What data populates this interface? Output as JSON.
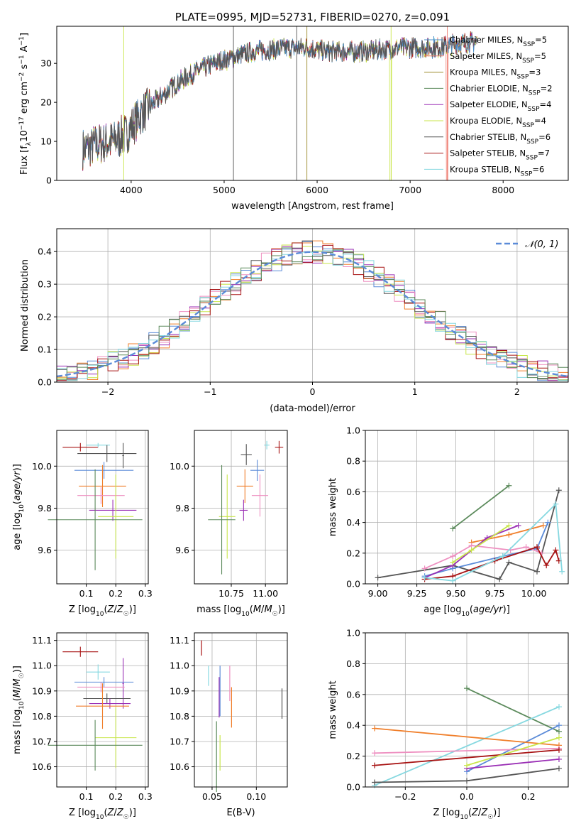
{
  "chart_data": [
    {
      "id": "spectrum",
      "type": "line",
      "title": "PLATE=0995, MJD=52731, FIBERID=0270, z=0.091",
      "xlabel": "wavelength [Angstrom, rest frame]",
      "ylabel": "Flux [f_λ10^-17 erg cm^-2 s^-1 A^-1]",
      "xlim": [
        3200,
        8700
      ],
      "ylim": [
        0,
        39.5
      ],
      "xticks": [
        "4000",
        "5000",
        "6000",
        "7000",
        "8000"
      ],
      "yticks": [
        "0",
        "10",
        "20",
        "30"
      ],
      "legend_position": "upper right",
      "continuum": {
        "x": [
          3480,
          3600,
          3800,
          3950,
          4100,
          4300,
          4500,
          4700,
          4900,
          5100,
          5300,
          5500,
          5700,
          5900,
          6100,
          6300,
          6500,
          6700,
          6900,
          7100,
          7300,
          7500,
          7700
        ],
        "y": [
          8,
          9,
          10,
          12,
          17,
          21,
          25,
          28,
          30,
          31.5,
          33,
          33.5,
          34,
          34,
          33,
          33,
          33,
          33.5,
          34,
          34,
          34,
          35,
          35.5
        ]
      },
      "series": [
        {
          "name": "Chabrier MILES, N_SSP=5",
          "label_main": "Chabrier MILES, N",
          "label_sub": "SSP",
          "label_tail": "=5",
          "color": "#4a8fc8",
          "marker": "+"
        },
        {
          "name": "Salpeter MILES, N_SSP=5",
          "label_main": "Salpeter MILES, N",
          "label_sub": "SSP",
          "label_tail": "=5",
          "color": "#ee7b6f"
        },
        {
          "name": "Kroupa MILES, N_SSP=3",
          "label_main": "Kroupa MILES, N",
          "label_sub": "SSP",
          "label_tail": "=3",
          "color": "#9b8a2a"
        },
        {
          "name": "Chabrier ELODIE, N_SSP=2",
          "label_main": "Chabrier ELODIE, N",
          "label_sub": "SSP",
          "label_tail": "=2",
          "color": "#5b8a5b"
        },
        {
          "name": "Salpeter ELODIE, N_SSP=4",
          "label_main": "Salpeter ELODIE, N",
          "label_sub": "SSP",
          "label_tail": "=4",
          "color": "#9a2fb5"
        },
        {
          "name": "Kroupa ELODIE, N_SSP=4",
          "label_main": "Kroupa ELODIE, N",
          "label_sub": "SSP",
          "label_tail": "=4",
          "color": "#c8e64a"
        },
        {
          "name": "Chabrier STELIB, N_SSP=6",
          "label_main": "Chabrier STELIB, N",
          "label_sub": "SSP",
          "label_tail": "=6",
          "color": "#555555"
        },
        {
          "name": "Salpeter STELIB, N_SSP=7",
          "label_main": "Salpeter STELIB, N",
          "label_sub": "SSP",
          "label_tail": "=7",
          "color": "#a81414"
        },
        {
          "name": "Kroupa STELIB, N_SSP=6",
          "label_main": "Kroupa STELIB, N",
          "label_sub": "SSP",
          "label_tail": "=6",
          "color": "#86d8e0"
        }
      ]
    },
    {
      "id": "residuals",
      "type": "line",
      "xlabel": "(data-model)/error",
      "ylabel": "Normed distribution",
      "xlim": [
        -2.5,
        2.5
      ],
      "ylim": [
        0,
        0.47
      ],
      "xticks": [
        "−2",
        "−1",
        "0",
        "1",
        "2"
      ],
      "yticks": [
        "0.0",
        "0.1",
        "0.2",
        "0.3",
        "0.4"
      ],
      "legend": "𝒩(0, 1)",
      "gauss_color": "#5b8bd8",
      "histogram": {
        "bin_edges_from": -2.5,
        "bin_width": 0.1,
        "nbins": 50,
        "colors": [
          "#5b8bd8",
          "#f07f2b",
          "#9a2fb5",
          "#ee8fc0",
          "#c8e64a",
          "#555555",
          "#a81414",
          "#86d8e0",
          "#5b8a5b"
        ]
      }
    },
    {
      "id": "age_Z",
      "type": "scatter",
      "xlabel": "Z [log10(Z/Z☉)]",
      "ylabel": "age [log10(age/yr)]",
      "xlim": [
        0.0,
        0.31
      ],
      "ylim": [
        9.44,
        10.17
      ],
      "xticks": [
        "0.1",
        "0.2",
        "0.3"
      ],
      "yticks": [
        "9.6",
        "9.8",
        "10.0"
      ],
      "points": [
        {
          "x": 0.08,
          "xerr": 0.06,
          "y": 10.09,
          "yerr": 0.02,
          "color": "#a81414"
        },
        {
          "x": 0.14,
          "xerr": 0.04,
          "y": 10.1,
          "yerr": 0.01,
          "color": "#86d8e0"
        },
        {
          "x": 0.17,
          "xerr": 0.1,
          "y": 10.06,
          "yerr": 0.04,
          "color": "#555555"
        },
        {
          "x": 0.225,
          "xerr": 0.003,
          "y": 10.05,
          "yerr": 0.06,
          "color": "#555555"
        },
        {
          "x": 0.16,
          "xerr": 0.1,
          "y": 9.98,
          "yerr": 0.04,
          "color": "#5b8bd8"
        },
        {
          "x": 0.155,
          "xerr": 0.08,
          "y": 9.905,
          "yerr": 0.1,
          "color": "#f07f2b"
        },
        {
          "x": 0.15,
          "xerr": 0.08,
          "y": 9.86,
          "yerr": 0.04,
          "color": "#ee8fc0"
        },
        {
          "x": 0.19,
          "xerr": 0.08,
          "y": 9.79,
          "yerr": 0.05,
          "color": "#9a2fb5"
        },
        {
          "x": 0.2,
          "xerr": 0.06,
          "y": 9.76,
          "yerr": 0.2,
          "color": "#c8e64a"
        },
        {
          "x": 0.13,
          "xerr": 0.16,
          "y": 9.745,
          "yerr": 0.24,
          "color": "#5b8a5b"
        }
      ]
    },
    {
      "id": "age_mass",
      "type": "scatter",
      "xlabel": "mass [log10(M/M☉)]",
      "ylabel": "",
      "xlim": [
        10.48,
        11.16
      ],
      "ylim": [
        9.44,
        10.17
      ],
      "xticks": [
        "10.75",
        "11.00"
      ],
      "yticks": [
        "9.6",
        "9.8",
        "10.0"
      ],
      "points": [
        {
          "x": 11.1,
          "xerr": 0.03,
          "y": 10.09,
          "yerr": 0.03,
          "color": "#a81414"
        },
        {
          "x": 11.01,
          "xerr": 0.02,
          "y": 10.1,
          "yerr": 0.02,
          "color": "#86d8e0"
        },
        {
          "x": 10.86,
          "xerr": 0.04,
          "y": 10.055,
          "yerr": 0.05,
          "color": "#555555"
        },
        {
          "x": 10.94,
          "xerr": 0.05,
          "y": 9.98,
          "yerr": 0.05,
          "color": "#5b8bd8"
        },
        {
          "x": 10.85,
          "xerr": 0.06,
          "y": 9.905,
          "yerr": 0.08,
          "color": "#f07f2b"
        },
        {
          "x": 10.96,
          "xerr": 0.06,
          "y": 9.86,
          "yerr": 0.1,
          "color": "#ee8fc0"
        },
        {
          "x": 10.84,
          "xerr": 0.03,
          "y": 9.79,
          "yerr": 0.05,
          "color": "#9a2fb5"
        },
        {
          "x": 10.72,
          "xerr": 0.06,
          "y": 9.76,
          "yerr": 0.2,
          "color": "#c8e64a"
        },
        {
          "x": 10.68,
          "xerr": 0.1,
          "y": 9.745,
          "yerr": 0.26,
          "color": "#5b8a5b"
        }
      ]
    },
    {
      "id": "weight_age",
      "type": "line",
      "xlabel": "age [log10(age/yr)]",
      "ylabel": "mass weight",
      "xlim": [
        8.92,
        10.22
      ],
      "ylim": [
        0,
        1.0
      ],
      "xticks": [
        "9.00",
        "9.25",
        "9.50",
        "9.75",
        "10.00"
      ],
      "yticks": [
        "0.0",
        "0.2",
        "0.4",
        "0.6",
        "0.8",
        "1.0"
      ],
      "series": [
        {
          "color": "#555555",
          "x": [
            9.0,
            9.48,
            9.78,
            9.84,
            10.02,
            10.16
          ],
          "y": [
            0.04,
            0.12,
            0.03,
            0.14,
            0.08,
            0.61
          ]
        },
        {
          "color": "#5b8bd8",
          "x": [
            9.3,
            9.48,
            9.8,
            10.02,
            10.09
          ],
          "y": [
            0.05,
            0.1,
            0.18,
            0.23,
            0.4
          ]
        },
        {
          "color": "#f07f2b",
          "x": [
            9.6,
            9.84,
            10.06
          ],
          "y": [
            0.27,
            0.32,
            0.38
          ]
        },
        {
          "color": "#ee8fc0",
          "x": [
            9.3,
            9.48,
            9.6,
            9.85,
            9.95,
            10.05
          ],
          "y": [
            0.1,
            0.18,
            0.25,
            0.22,
            0.24,
            0.2
          ]
        },
        {
          "color": "#9a2fb5",
          "x": [
            9.3,
            9.48,
            9.7,
            9.9
          ],
          "y": [
            0.04,
            0.12,
            0.3,
            0.38
          ]
        },
        {
          "color": "#c8e64a",
          "x": [
            9.48,
            9.6,
            9.84
          ],
          "y": [
            0.14,
            0.22,
            0.38
          ]
        },
        {
          "color": "#5b8a5b",
          "x": [
            9.48,
            9.84
          ],
          "y": [
            0.36,
            0.64
          ]
        },
        {
          "color": "#a81414",
          "x": [
            9.3,
            9.48,
            9.75,
            10.02,
            10.08,
            10.14,
            10.16
          ],
          "y": [
            0.03,
            0.05,
            0.15,
            0.24,
            0.12,
            0.22,
            0.15
          ]
        },
        {
          "color": "#86d8e0",
          "x": [
            9.3,
            9.48,
            9.8,
            10.14,
            10.18
          ],
          "y": [
            0.04,
            0.02,
            0.18,
            0.52,
            0.08
          ]
        }
      ]
    },
    {
      "id": "mass_Z",
      "type": "scatter",
      "xlabel": "Z [log10(Z/Z☉)]",
      "ylabel": "mass [log10(M/M☉)]",
      "xlim": [
        0.0,
        0.31
      ],
      "ylim": [
        10.52,
        11.13
      ],
      "xticks": [
        "0.1",
        "0.2",
        "0.3"
      ],
      "yticks": [
        "10.6",
        "10.7",
        "10.8",
        "10.9",
        "11.0",
        "11.1"
      ],
      "points": [
        {
          "x": 0.08,
          "xerr": 0.06,
          "y": 11.055,
          "yerr": 0.02,
          "color": "#a81414"
        },
        {
          "x": 0.14,
          "xerr": 0.04,
          "y": 10.975,
          "yerr": 0.03,
          "color": "#86d8e0"
        },
        {
          "x": 0.225,
          "xerr": 0.003,
          "y": 10.93,
          "yerr": 0.1,
          "color": "#9a2fb5"
        },
        {
          "x": 0.16,
          "xerr": 0.1,
          "y": 10.935,
          "yerr": 0.02,
          "color": "#5b8bd8"
        },
        {
          "x": 0.15,
          "xerr": 0.08,
          "y": 10.915,
          "yerr": 0.02,
          "color": "#ee8fc0"
        },
        {
          "x": 0.17,
          "xerr": 0.08,
          "y": 10.87,
          "yerr": 0.02,
          "color": "#555555"
        },
        {
          "x": 0.18,
          "xerr": 0.07,
          "y": 10.85,
          "yerr": 0.02,
          "color": "#9a2fb5"
        },
        {
          "x": 0.155,
          "xerr": 0.09,
          "y": 10.84,
          "yerr": 0.09,
          "color": "#f07f2b"
        },
        {
          "x": 0.2,
          "xerr": 0.07,
          "y": 10.715,
          "yerr": 0.12,
          "color": "#c8e64a"
        },
        {
          "x": 0.13,
          "xerr": 0.16,
          "y": 10.685,
          "yerr": 0.1,
          "color": "#5b8a5b"
        }
      ]
    },
    {
      "id": "mass_EBV",
      "type": "scatter",
      "xlabel": "E(B-V)",
      "ylabel": "",
      "xlim": [
        0.03,
        0.135
      ],
      "ylim": [
        10.52,
        11.13
      ],
      "xticks": [
        "0.05",
        "0.10"
      ],
      "yticks": [
        "10.6",
        "10.7",
        "10.8",
        "10.9",
        "11.0",
        "11.1"
      ],
      "points": [
        {
          "x": 0.038,
          "y": 11.07,
          "yerr": 0.03,
          "color": "#a81414"
        },
        {
          "x": 0.046,
          "y": 10.96,
          "yerr": 0.04,
          "color": "#86d8e0"
        },
        {
          "x": 0.058,
          "y": 10.875,
          "yerr": 0.08,
          "color": "#9a2fb5"
        },
        {
          "x": 0.059,
          "y": 10.9,
          "yerr": 0.1,
          "color": "#5b8bd8"
        },
        {
          "x": 0.07,
          "y": 10.93,
          "yerr": 0.07,
          "color": "#ee8fc0"
        },
        {
          "x": 0.072,
          "y": 10.835,
          "yerr": 0.08,
          "color": "#f07f2b"
        },
        {
          "x": 0.129,
          "y": 10.85,
          "yerr": 0.06,
          "color": "#555555"
        },
        {
          "x": 0.059,
          "y": 10.655,
          "yerr": 0.07,
          "color": "#c8e64a"
        },
        {
          "x": 0.055,
          "y": 10.64,
          "yerr": 0.14,
          "color": "#5b8a5b"
        }
      ]
    },
    {
      "id": "weight_Z",
      "type": "line",
      "xlabel": "Z [log10(Z/Z☉)]",
      "ylabel": "mass weight",
      "xlim": [
        -0.33,
        0.33
      ],
      "ylim": [
        0,
        1.0
      ],
      "xticks": [
        "−0.2",
        "0.0",
        "0.2"
      ],
      "yticks": [
        "0.0",
        "0.2",
        "0.4",
        "0.6",
        "0.8",
        "1.0"
      ],
      "series": [
        {
          "color": "#5b8a5b",
          "x": [
            0.0,
            0.3
          ],
          "y": [
            0.64,
            0.36
          ]
        },
        {
          "color": "#86d8e0",
          "x": [
            -0.3,
            0.3
          ],
          "y": [
            0.01,
            0.52
          ]
        },
        {
          "color": "#5b8bd8",
          "x": [
            0.0,
            0.3
          ],
          "y": [
            0.1,
            0.4
          ]
        },
        {
          "color": "#f07f2b",
          "x": [
            -0.3,
            0.3
          ],
          "y": [
            0.38,
            0.27
          ]
        },
        {
          "color": "#ee8fc0",
          "x": [
            -0.3,
            0.3
          ],
          "y": [
            0.22,
            0.25
          ]
        },
        {
          "color": "#a81414",
          "x": [
            -0.3,
            0.3
          ],
          "y": [
            0.14,
            0.24
          ]
        },
        {
          "color": "#9a2fb5",
          "x": [
            0.0,
            0.3
          ],
          "y": [
            0.12,
            0.18
          ]
        },
        {
          "color": "#c8e64a",
          "x": [
            0.0,
            0.3
          ],
          "y": [
            0.14,
            0.32
          ]
        },
        {
          "color": "#555555",
          "x": [
            -0.3,
            0.0,
            0.3
          ],
          "y": [
            0.03,
            0.04,
            0.12
          ]
        }
      ]
    }
  ]
}
